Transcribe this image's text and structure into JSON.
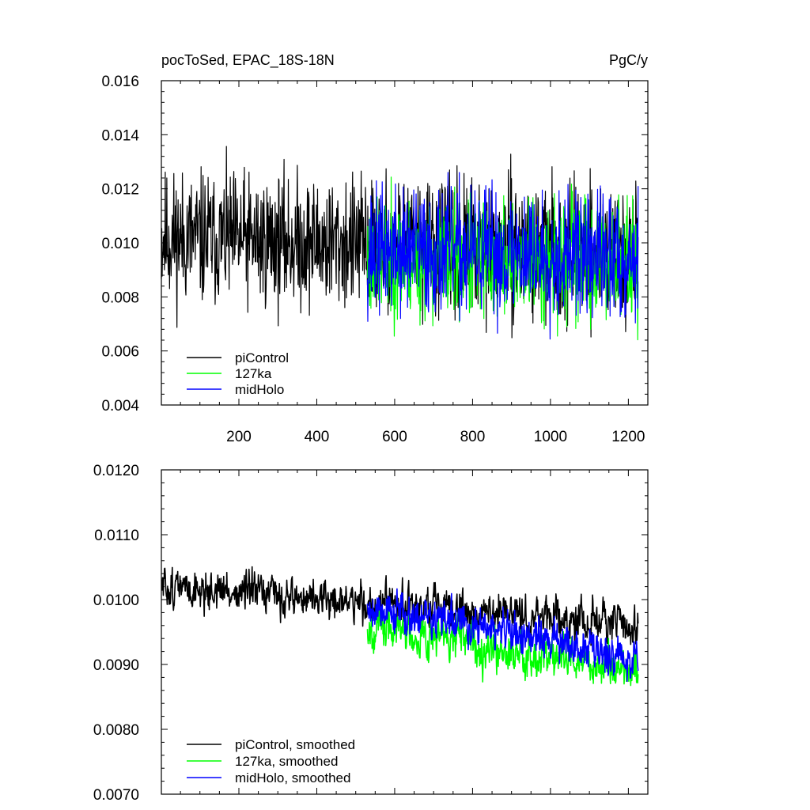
{
  "chart_data": [
    {
      "type": "line",
      "title": "pocToSed, EPAC_18S-18N",
      "units": "PgC/y",
      "xlim": [
        1,
        1250
      ],
      "ylim": [
        0.004,
        0.016
      ],
      "xticks": [
        200,
        400,
        600,
        800,
        1000,
        1200
      ],
      "xtick_labels": [
        "200",
        "400",
        "600",
        "800",
        "1000",
        "1200"
      ],
      "yticks": [
        0.004,
        0.006,
        0.008,
        0.01,
        0.012,
        0.014,
        0.016
      ],
      "ytick_labels": [
        "0.004",
        "0.006",
        "0.008",
        "0.010",
        "0.012",
        "0.014",
        "0.016"
      ],
      "grid": false,
      "legend_position": "bottom-left",
      "series": [
        {
          "name": "piControl",
          "color": "#000000",
          "x_start": 1,
          "x_end": 1225,
          "mean": 0.0102,
          "mean_late": 0.0096,
          "noise": 0.0021,
          "min": 0.0048,
          "max": 0.0152,
          "seed": 11
        },
        {
          "name": "127ka",
          "color": "#00ff00",
          "x_start": 530,
          "x_end": 1225,
          "mean": 0.0094,
          "mean_late": 0.0093,
          "noise": 0.0019,
          "min": 0.005,
          "max": 0.0148,
          "seed": 23
        },
        {
          "name": "midHolo",
          "color": "#0000ff",
          "x_start": 530,
          "x_end": 1225,
          "mean": 0.0097,
          "mean_late": 0.0095,
          "noise": 0.002,
          "min": 0.0049,
          "max": 0.0158,
          "seed": 37
        }
      ]
    },
    {
      "type": "line",
      "xlim": [
        1,
        1250
      ],
      "ylim": [
        0.007,
        0.012
      ],
      "xticks": [
        200,
        400,
        600,
        800,
        1000,
        1200
      ],
      "yticks": [
        0.007,
        0.008,
        0.009,
        0.01,
        0.011,
        0.012
      ],
      "ytick_labels": [
        "0.0070",
        "0.0080",
        "0.0090",
        "0.0100",
        "0.0110",
        "0.0120"
      ],
      "grid": false,
      "legend_position": "bottom-left",
      "series": [
        {
          "name": "piControl, smoothed",
          "color": "#000000",
          "x_start": 1,
          "x_end": 1225,
          "mean": 0.0102,
          "mean_late": 0.0096,
          "noise": 0.00042,
          "min": 0.0089,
          "max": 0.0115,
          "seed": 51
        },
        {
          "name": "127ka, smoothed",
          "color": "#00ff00",
          "x_start": 530,
          "x_end": 1225,
          "mean": 0.0096,
          "mean_late": 0.0089,
          "noise": 0.00045,
          "min": 0.0079,
          "max": 0.0104,
          "seed": 67
        },
        {
          "name": "midHolo, smoothed",
          "color": "#0000ff",
          "x_start": 530,
          "x_end": 1225,
          "mean": 0.0099,
          "mean_late": 0.0091,
          "noise": 0.00045,
          "min": 0.008,
          "max": 0.0108,
          "seed": 79
        }
      ]
    }
  ]
}
